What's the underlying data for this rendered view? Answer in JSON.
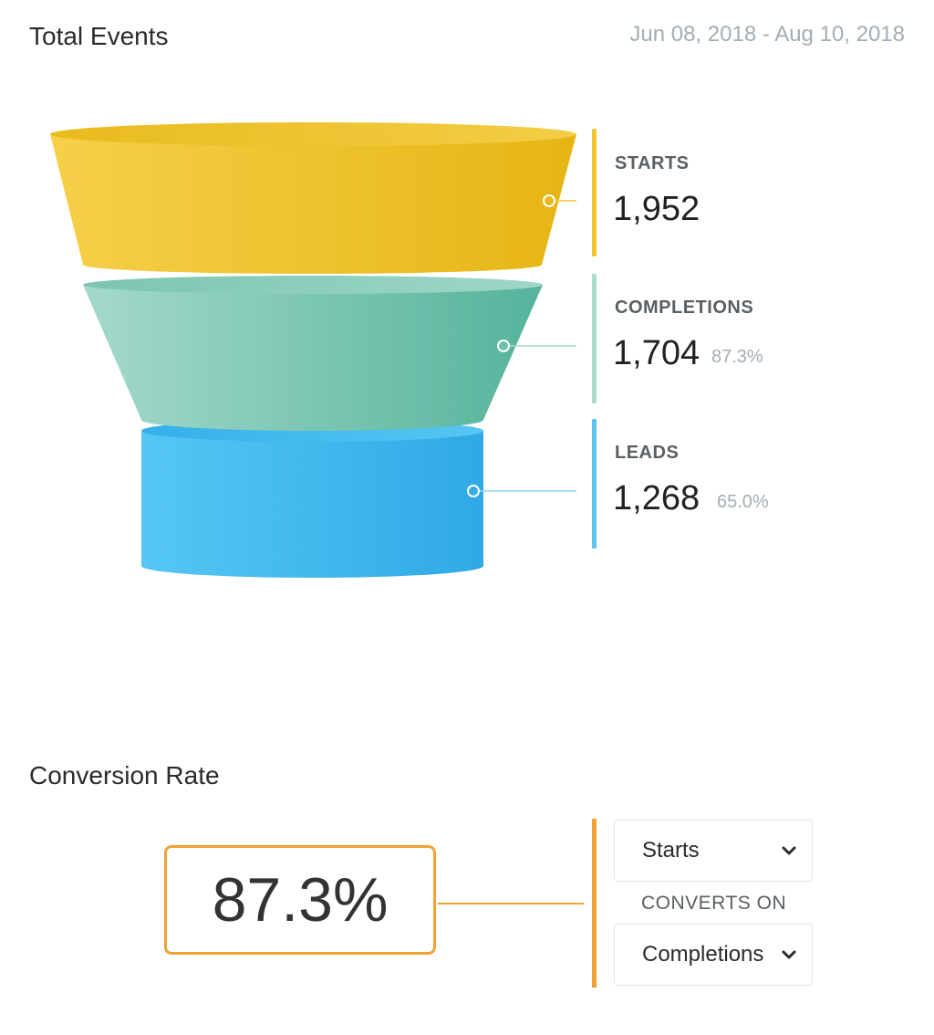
{
  "total_events": {
    "title": "Total Events",
    "date_range": "Jun 08, 2018 - Aug 10, 2018"
  },
  "funnel": {
    "stages": [
      {
        "label": "STARTS",
        "value": "1,952",
        "percent": "",
        "color": "#f2c62e"
      },
      {
        "label": "COMPLETIONS",
        "value": "1,704",
        "percent": "87.3%",
        "color": "#7cc8b6"
      },
      {
        "label": "LEADS",
        "value": "1,268",
        "percent": "65.0%",
        "color": "#42b9ec"
      }
    ]
  },
  "conversion": {
    "title": "Conversion Rate",
    "rate": "87.3%",
    "accent_color": "#f0a232",
    "from_select": "Starts",
    "converts_on_label": "CONVERTS ON",
    "to_select": "Completions"
  }
}
